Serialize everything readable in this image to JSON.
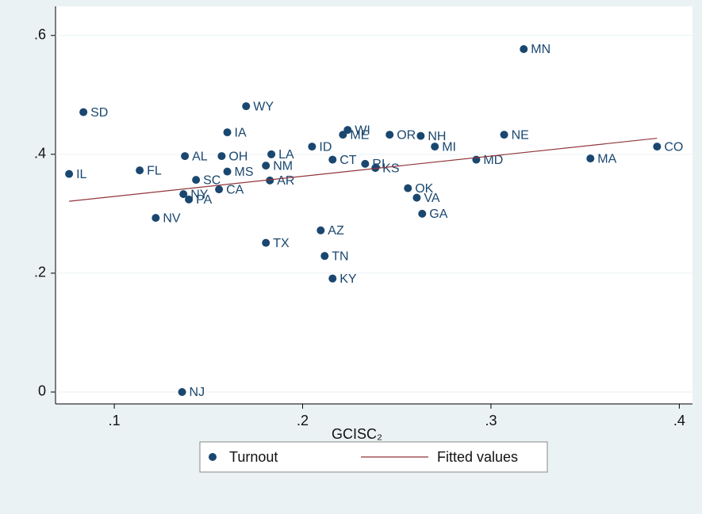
{
  "chart_data": {
    "type": "scatter",
    "x_label": "GCISC₂",
    "xlim": [
      0.0688,
      0.407
    ],
    "ylim": [
      -0.02,
      0.649
    ],
    "xticks": [
      {
        "value": 0.1,
        "label": ".1"
      },
      {
        "value": 0.2,
        "label": ".2"
      },
      {
        "value": 0.3,
        "label": ".3"
      },
      {
        "value": 0.4,
        "label": ".4"
      }
    ],
    "yticks": [
      0,
      {
        "value": 0.2,
        "label": ".2"
      },
      {
        "value": 0.4,
        "label": ".4"
      },
      {
        "value": 0.6,
        "label": ".6"
      }
    ],
    "grid": true,
    "series": [
      {
        "name": "Turnout",
        "color": "#1a476f",
        "mode": "markers",
        "labels": [
          "IL",
          "SD",
          "FL",
          "NV",
          "AL",
          "NY",
          "PA",
          "NJ",
          "SC",
          "OH",
          "IA",
          "MS",
          "CA",
          "WY",
          "LA",
          "NM",
          "AR",
          "TX",
          "ID",
          "CT",
          "AZ",
          "TN",
          "KY",
          "WI",
          "ME",
          "RI",
          "KS",
          "OR",
          "NH",
          "OK",
          "VA",
          "GA",
          "MI",
          "MD",
          "NE",
          "MN",
          "MA",
          "CO"
        ],
        "x": [
          0.076,
          0.0836,
          0.1135,
          0.122,
          0.1375,
          0.1367,
          0.1396,
          0.136,
          0.1434,
          0.157,
          0.16,
          0.16,
          0.1556,
          0.17,
          0.1834,
          0.1805,
          0.1826,
          0.1805,
          0.205,
          0.2159,
          0.2096,
          0.2117,
          0.2159,
          0.2239,
          0.2214,
          0.2332,
          0.2386,
          0.2462,
          0.2627,
          0.2559,
          0.2606,
          0.2635,
          0.2702,
          0.2922,
          0.307,
          0.3174,
          0.3528,
          0.3882
        ],
        "values": [
          0.367,
          0.471,
          0.373,
          0.293,
          0.397,
          0.333,
          0.324,
          0,
          0.357,
          0.397,
          0.437,
          0.371,
          0.341,
          0.481,
          0.4,
          0.381,
          0.356,
          0.251,
          0.413,
          0.391,
          0.272,
          0.229,
          0.191,
          0.441,
          0.433,
          0.384,
          0.377,
          0.433,
          0.431,
          0.343,
          0.327,
          0.3,
          0.413,
          0.391,
          0.433,
          0.577,
          0.393,
          0.413
        ]
      },
      {
        "name": "Fitted values",
        "color": "#90353b",
        "mode": "line",
        "x": [
          0.076,
          0.3882
        ],
        "values": [
          0.321,
          0.427
        ]
      }
    ]
  }
}
